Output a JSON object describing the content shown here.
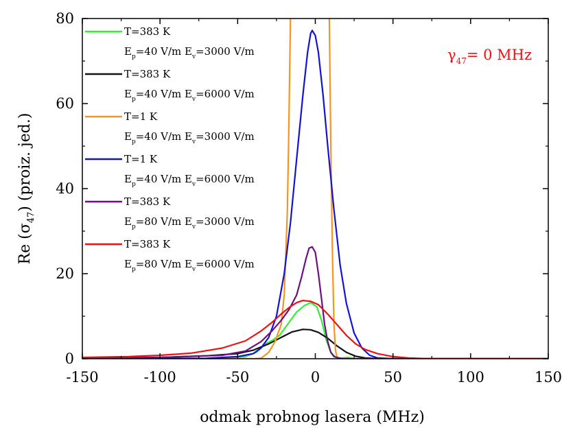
{
  "chart_data": {
    "type": "line",
    "xlabel": "odmak probnog lasera (MHz)",
    "ylabel": {
      "prefix": "Re (",
      "symbol": "σ",
      "subscript": "47",
      "suffix": ") (proiz. jed.)"
    },
    "annotation": {
      "symbol": "γ",
      "subscript": "47",
      "rest": "= 0 MHz",
      "color": "#ee1111"
    },
    "xlim": [
      -150,
      150
    ],
    "ylim": [
      0,
      80
    ],
    "xticks": [
      -150,
      -100,
      -50,
      0,
      50,
      100,
      150
    ],
    "yticks": [
      0,
      20,
      40,
      60,
      80
    ],
    "grid": false,
    "legend_position": "top-left",
    "series": [
      {
        "name": "T=383 K",
        "params": {
          "ep": "=40 V/m",
          "ev": "=3000 V/m"
        },
        "color": "#33ee33",
        "points": [
          [
            -150,
            0
          ],
          [
            -60,
            0.05
          ],
          [
            -45,
            0.5
          ],
          [
            -38,
            1.5
          ],
          [
            -32,
            3.5
          ],
          [
            -27,
            4.5
          ],
          [
            -23,
            5.5
          ],
          [
            -18,
            8
          ],
          [
            -12,
            11
          ],
          [
            -7,
            12.5
          ],
          [
            -3,
            13.2
          ],
          [
            1,
            12.2
          ],
          [
            4,
            9
          ],
          [
            7,
            4.5
          ],
          [
            10,
            1.5
          ],
          [
            13,
            0.4
          ],
          [
            17,
            0.1
          ],
          [
            21,
            0.3
          ],
          [
            26,
            0
          ],
          [
            150,
            0
          ]
        ]
      },
      {
        "name": "T=383 K",
        "params": {
          "ep": "=40 V/m",
          "ev": "=6000 V/m"
        },
        "color": "#111111",
        "points": [
          [
            -150,
            0.1
          ],
          [
            -100,
            0.3
          ],
          [
            -70,
            0.7
          ],
          [
            -50,
            1.2
          ],
          [
            -40,
            2
          ],
          [
            -30,
            3.5
          ],
          [
            -22,
            5
          ],
          [
            -15,
            6.3
          ],
          [
            -8,
            6.9
          ],
          [
            -3,
            6.8
          ],
          [
            2,
            6.2
          ],
          [
            8,
            4.8
          ],
          [
            14,
            3
          ],
          [
            20,
            1.5
          ],
          [
            26,
            0.6
          ],
          [
            32,
            0.2
          ],
          [
            40,
            0.05
          ],
          [
            60,
            0
          ],
          [
            150,
            0
          ]
        ]
      },
      {
        "name": "T=1 K",
        "params": {
          "ep": "=40 V/m",
          "ev": "=3000 V/m"
        },
        "color": "#f7941d",
        "points": [
          [
            -150,
            0
          ],
          [
            -40,
            0
          ],
          [
            -35,
            0.1
          ],
          [
            -30,
            1.5
          ],
          [
            -26,
            4
          ],
          [
            -22,
            8
          ],
          [
            -20,
            15
          ],
          [
            -18,
            35
          ],
          [
            -17,
            55
          ],
          [
            -16,
            80
          ],
          [
            -15,
            110
          ],
          [
            8,
            110
          ],
          [
            9,
            80
          ],
          [
            10,
            50
          ],
          [
            11,
            25
          ],
          [
            12,
            8
          ],
          [
            13,
            2
          ],
          [
            14,
            0.3
          ],
          [
            17,
            0
          ],
          [
            150,
            0
          ]
        ]
      },
      {
        "name": "T=1 K",
        "params": {
          "ep": "=40 V/m",
          "ev": "=6000 V/m"
        },
        "color": "#1111dd",
        "points": [
          [
            -150,
            0
          ],
          [
            -70,
            0.1
          ],
          [
            -50,
            0.5
          ],
          [
            -40,
            1.2
          ],
          [
            -35,
            2.5
          ],
          [
            -30,
            5
          ],
          [
            -25,
            10
          ],
          [
            -20,
            20
          ],
          [
            -16,
            32
          ],
          [
            -12,
            47
          ],
          [
            -8,
            62
          ],
          [
            -5,
            72
          ],
          [
            -3,
            76.5
          ],
          [
            -2,
            77.2
          ],
          [
            0,
            76
          ],
          [
            2,
            72
          ],
          [
            5,
            62
          ],
          [
            8,
            50
          ],
          [
            12,
            35
          ],
          [
            16,
            22
          ],
          [
            20,
            13
          ],
          [
            25,
            6
          ],
          [
            30,
            2.5
          ],
          [
            35,
            0.8
          ],
          [
            40,
            0.2
          ],
          [
            50,
            0
          ],
          [
            150,
            0
          ]
        ]
      },
      {
        "name": "T=383 K",
        "params": {
          "ep": "=80 V/m",
          "ev": "=3000 V/m"
        },
        "color": "#6a0f7f",
        "points": [
          [
            -150,
            0.1
          ],
          [
            -100,
            0.3
          ],
          [
            -60,
            0.8
          ],
          [
            -45,
            1.8
          ],
          [
            -35,
            4
          ],
          [
            -28,
            6.5
          ],
          [
            -22,
            9
          ],
          [
            -17,
            11.5
          ],
          [
            -12,
            15
          ],
          [
            -9,
            19
          ],
          [
            -6,
            23.5
          ],
          [
            -4,
            26
          ],
          [
            -2,
            26.3
          ],
          [
            0,
            25
          ],
          [
            2,
            20
          ],
          [
            4,
            14
          ],
          [
            6,
            8
          ],
          [
            8,
            4
          ],
          [
            10,
            1.5
          ],
          [
            12,
            0.5
          ],
          [
            16,
            0.1
          ],
          [
            20,
            0
          ],
          [
            150,
            0
          ]
        ]
      },
      {
        "name": "T=383 K",
        "params": {
          "ep": "=80 V/m",
          "ev": "=6000 V/m"
        },
        "color": "#ee1111",
        "points": [
          [
            -150,
            0.3
          ],
          [
            -120,
            0.5
          ],
          [
            -100,
            0.8
          ],
          [
            -80,
            1.3
          ],
          [
            -60,
            2.5
          ],
          [
            -45,
            4.2
          ],
          [
            -35,
            6.5
          ],
          [
            -28,
            8.5
          ],
          [
            -22,
            10.5
          ],
          [
            -17,
            12
          ],
          [
            -12,
            13.2
          ],
          [
            -8,
            13.7
          ],
          [
            -3,
            13.5
          ],
          [
            2,
            12.7
          ],
          [
            8,
            10.5
          ],
          [
            14,
            8
          ],
          [
            20,
            5.5
          ],
          [
            26,
            3.5
          ],
          [
            32,
            2.2
          ],
          [
            40,
            1.2
          ],
          [
            50,
            0.5
          ],
          [
            60,
            0.2
          ],
          [
            70,
            0.05
          ],
          [
            80,
            0
          ],
          [
            150,
            0
          ]
        ]
      }
    ]
  }
}
